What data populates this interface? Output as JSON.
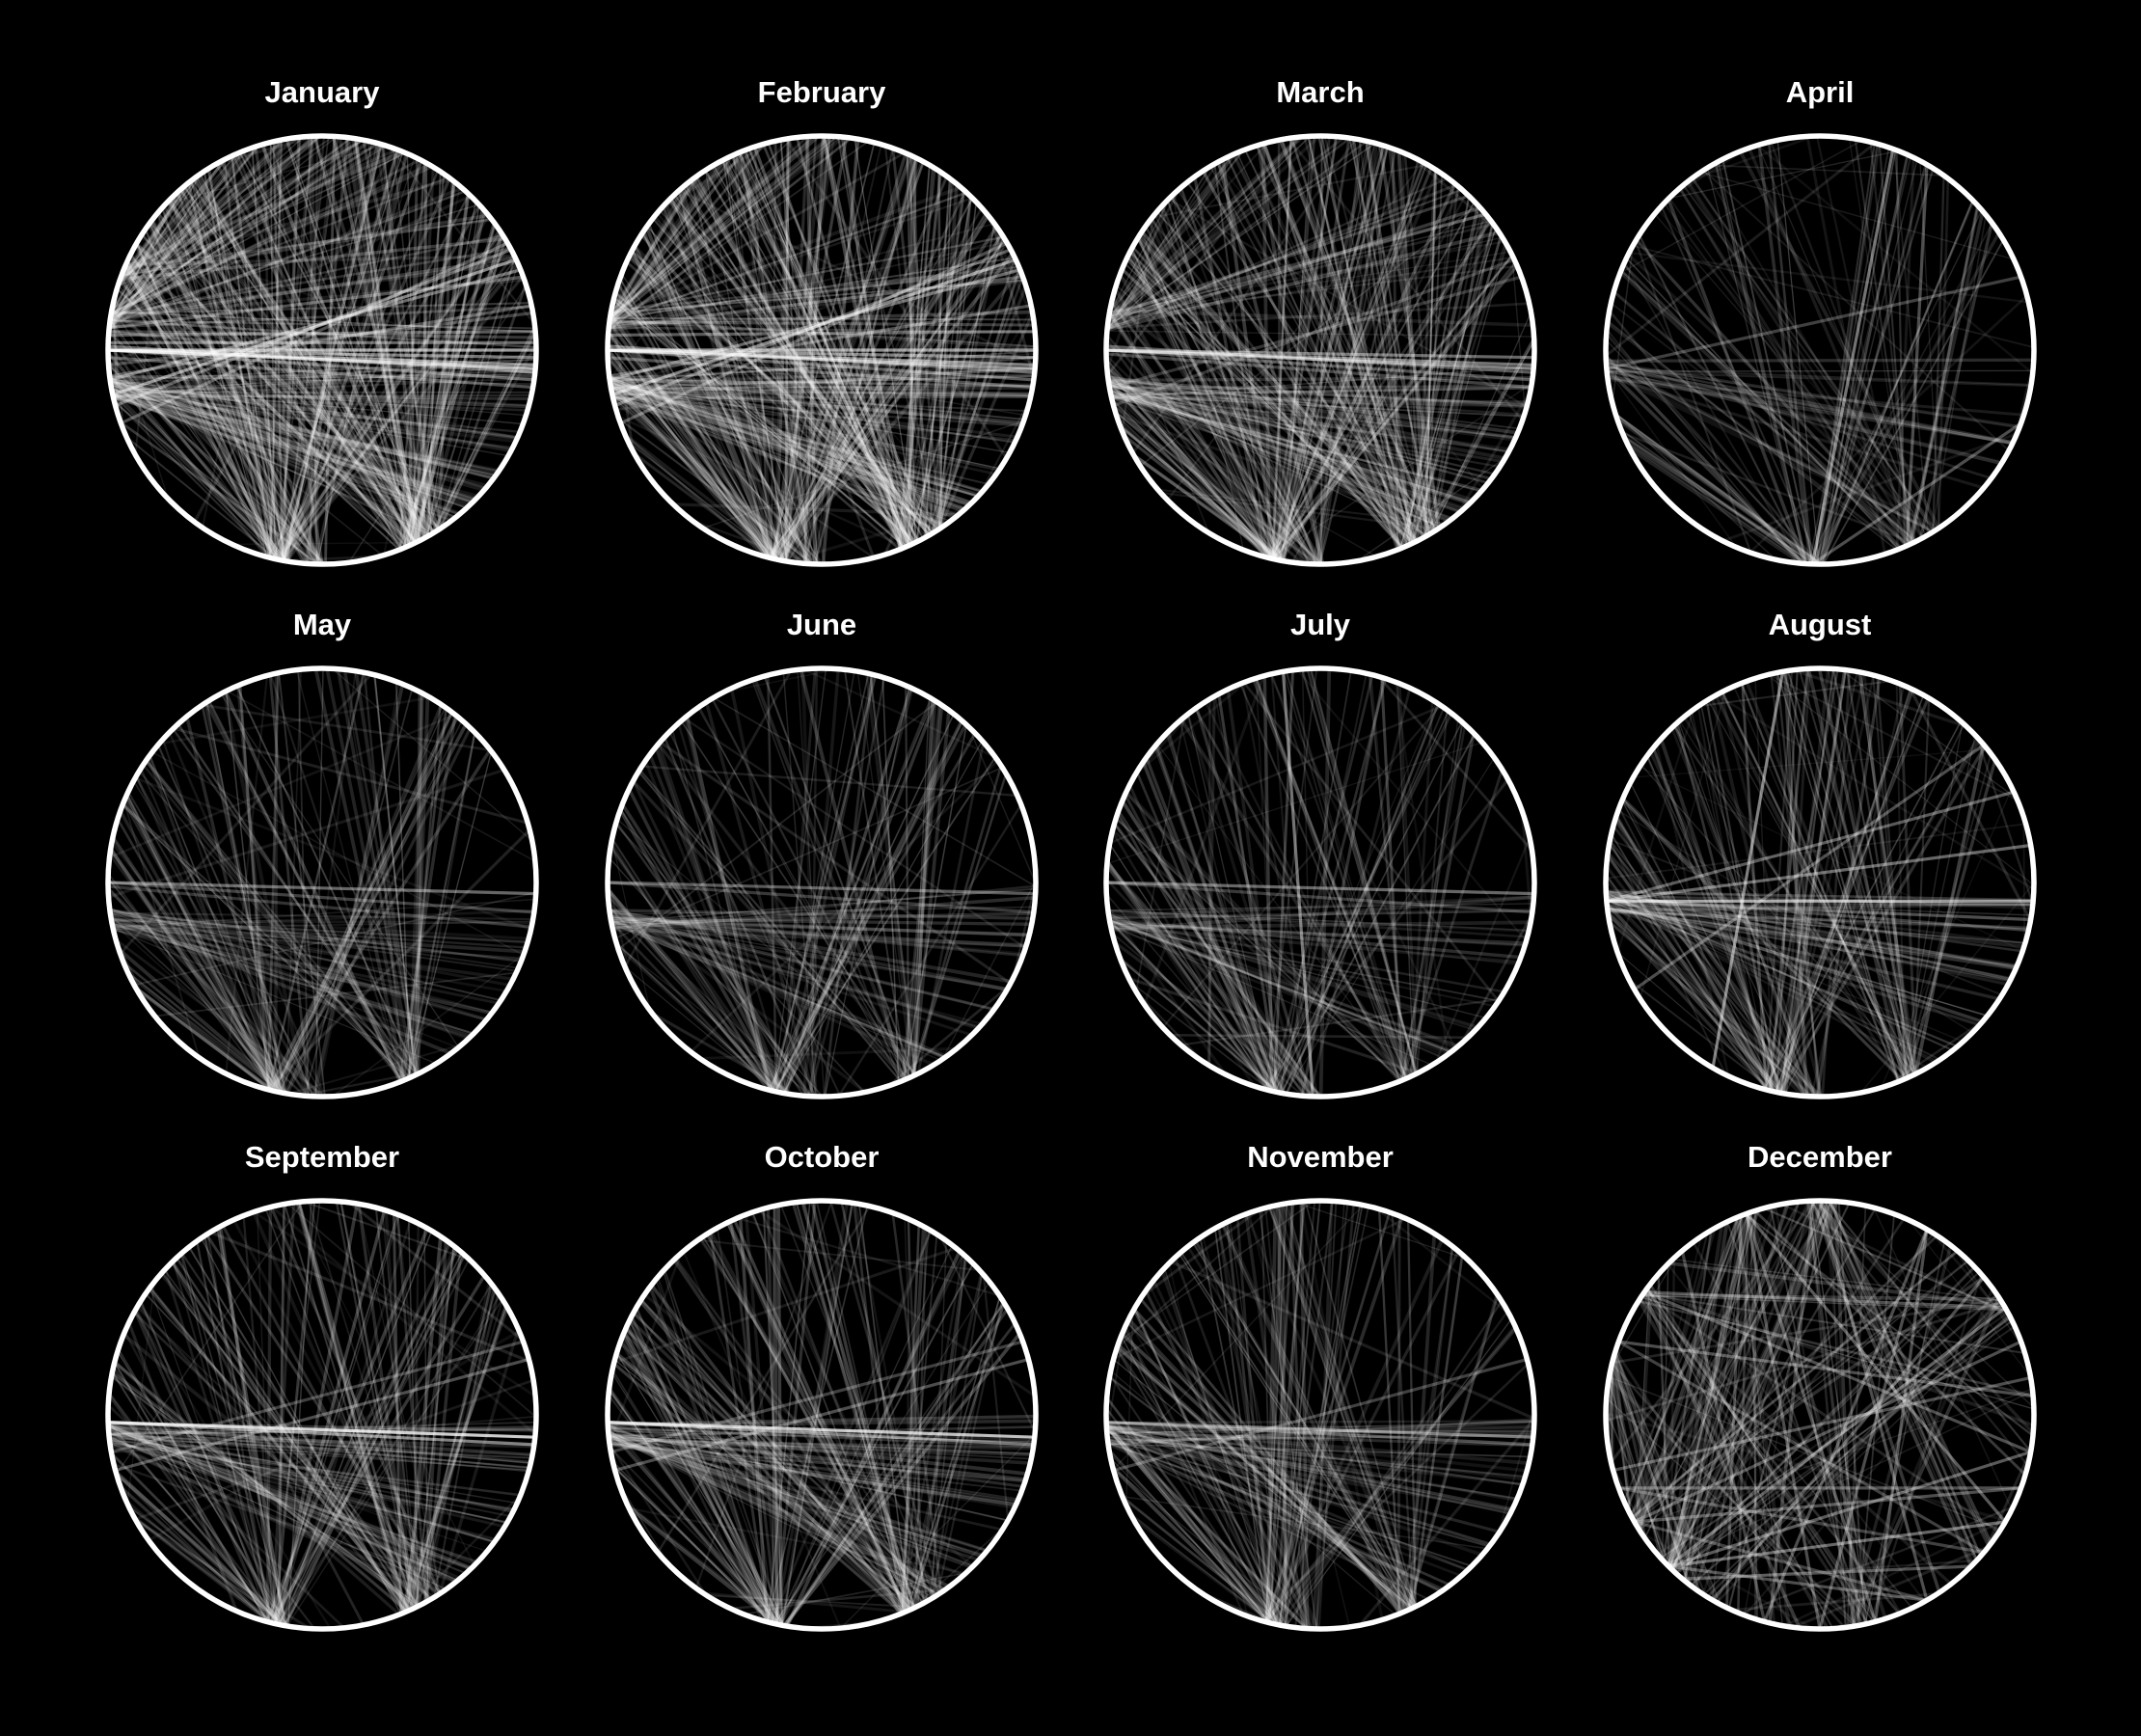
{
  "chart_data": {
    "type": "chord",
    "title": "",
    "background_color": "#000000",
    "line_color": "#ffffff",
    "ring_color": "#ffffff",
    "layout": "grid-3x4",
    "panels": [
      {
        "title": "January",
        "hubs": [
          102,
          66,
          59,
          92,
          5,
          188,
          200
        ],
        "chords": [
          [
            180,
            5,
            0.55
          ],
          [
            180,
            4,
            0.5
          ],
          [
            180,
            2,
            0.45
          ],
          [
            181,
            6,
            0.4
          ],
          [
            180,
            8,
            0.35
          ],
          [
            184,
            355,
            0.35
          ],
          [
            186,
            340,
            0.3
          ],
          [
            178,
            10,
            0.3
          ],
          [
            180,
            0,
            0.6
          ],
          [
            182,
            358,
            0.4
          ],
          [
            168,
            335,
            0.5
          ],
          [
            172,
            338,
            0.4
          ],
          [
            165,
            332,
            0.35
          ],
          [
            160,
            330,
            0.3
          ],
          [
            173,
            348,
            0.3
          ],
          [
            176,
            350,
            0.25
          ],
          [
            5,
            180,
            0.3
          ],
          [
            6,
            185,
            0.25
          ]
        ],
        "fans": [
          {
            "hub": 102,
            "count": 70,
            "from": 150,
            "to": 340,
            "alpha": 0.2
          },
          {
            "hub": 66,
            "count": 50,
            "from": 190,
            "to": 330,
            "alpha": 0.22
          },
          {
            "hub": 59,
            "count": 35,
            "from": 200,
            "to": 360,
            "alpha": 0.2
          },
          {
            "hub": 92,
            "count": 30,
            "from": 160,
            "to": 300,
            "alpha": 0.18
          },
          {
            "hub": 188,
            "count": 45,
            "from": 220,
            "to": 360,
            "alpha": 0.18
          },
          {
            "hub": 200,
            "count": 25,
            "from": 230,
            "to": 330,
            "alpha": 0.16
          },
          {
            "hub": 170,
            "count": 60,
            "from": 0,
            "to": 60,
            "alpha": 0.15
          }
        ]
      },
      {
        "title": "February",
        "hubs": [
          102,
          66,
          59,
          92,
          5,
          188
        ],
        "chords": [
          [
            180,
            5,
            0.55
          ],
          [
            180,
            4,
            0.5
          ],
          [
            180,
            2,
            0.45
          ],
          [
            181,
            6,
            0.4
          ],
          [
            180,
            8,
            0.35
          ],
          [
            184,
            355,
            0.35
          ],
          [
            186,
            340,
            0.3
          ],
          [
            178,
            10,
            0.3
          ],
          [
            180,
            0,
            0.55
          ],
          [
            168,
            335,
            0.5
          ],
          [
            172,
            338,
            0.4
          ],
          [
            165,
            332,
            0.35
          ],
          [
            160,
            330,
            0.3
          ],
          [
            173,
            348,
            0.3
          ]
        ],
        "fans": [
          {
            "hub": 102,
            "count": 70,
            "from": 150,
            "to": 340,
            "alpha": 0.2
          },
          {
            "hub": 66,
            "count": 50,
            "from": 190,
            "to": 330,
            "alpha": 0.22
          },
          {
            "hub": 59,
            "count": 35,
            "from": 200,
            "to": 360,
            "alpha": 0.2
          },
          {
            "hub": 92,
            "count": 30,
            "from": 160,
            "to": 300,
            "alpha": 0.18
          },
          {
            "hub": 188,
            "count": 40,
            "from": 220,
            "to": 360,
            "alpha": 0.18
          },
          {
            "hub": 170,
            "count": 55,
            "from": 0,
            "to": 60,
            "alpha": 0.15
          }
        ]
      },
      {
        "title": "March",
        "hubs": [
          102,
          66,
          59,
          92,
          188
        ],
        "chords": [
          [
            180,
            5,
            0.5
          ],
          [
            180,
            4,
            0.45
          ],
          [
            181,
            6,
            0.35
          ],
          [
            180,
            8,
            0.3
          ],
          [
            180,
            2,
            0.4
          ],
          [
            179,
            10,
            0.25
          ],
          [
            170,
            340,
            0.2
          ],
          [
            165,
            335,
            0.2
          ]
        ],
        "fans": [
          {
            "hub": 102,
            "count": 65,
            "from": 150,
            "to": 340,
            "alpha": 0.19
          },
          {
            "hub": 66,
            "count": 45,
            "from": 190,
            "to": 330,
            "alpha": 0.2
          },
          {
            "hub": 59,
            "count": 30,
            "from": 200,
            "to": 360,
            "alpha": 0.18
          },
          {
            "hub": 92,
            "count": 28,
            "from": 160,
            "to": 300,
            "alpha": 0.17
          },
          {
            "hub": 188,
            "count": 35,
            "from": 220,
            "to": 360,
            "alpha": 0.16
          },
          {
            "hub": 170,
            "count": 45,
            "from": 0,
            "to": 60,
            "alpha": 0.14
          }
        ]
      },
      {
        "title": "April",
        "hubs": [
          92,
          66,
          59
        ],
        "chords": [
          [
            92,
            290,
            0.45
          ],
          [
            66,
            300,
            0.3
          ],
          [
            92,
            20,
            0.3
          ],
          [
            175,
            340,
            0.25
          ]
        ],
        "fans": [
          {
            "hub": 92,
            "count": 40,
            "from": 150,
            "to": 330,
            "alpha": 0.17
          },
          {
            "hub": 66,
            "count": 25,
            "from": 180,
            "to": 320,
            "alpha": 0.16
          },
          {
            "hub": 59,
            "count": 15,
            "from": 200,
            "to": 340,
            "alpha": 0.14
          },
          {
            "hub": 175,
            "count": 20,
            "from": 0,
            "to": 60,
            "alpha": 0.13
          }
        ]
      },
      {
        "title": "May",
        "hubs": [
          102,
          66,
          92
        ],
        "chords": [
          [
            180,
            3,
            0.4
          ],
          [
            180,
            8,
            0.25
          ],
          [
            179,
            12,
            0.2
          ]
        ],
        "fans": [
          {
            "hub": 102,
            "count": 45,
            "from": 150,
            "to": 330,
            "alpha": 0.17
          },
          {
            "hub": 66,
            "count": 35,
            "from": 190,
            "to": 330,
            "alpha": 0.17
          },
          {
            "hub": 92,
            "count": 20,
            "from": 160,
            "to": 300,
            "alpha": 0.14
          },
          {
            "hub": 170,
            "count": 30,
            "from": 0,
            "to": 60,
            "alpha": 0.13
          }
        ]
      },
      {
        "title": "June",
        "hubs": [
          102,
          66,
          92
        ],
        "chords": [
          [
            180,
            3,
            0.35
          ],
          [
            180,
            8,
            0.22
          ]
        ],
        "fans": [
          {
            "hub": 102,
            "count": 40,
            "from": 150,
            "to": 330,
            "alpha": 0.17
          },
          {
            "hub": 66,
            "count": 30,
            "from": 190,
            "to": 330,
            "alpha": 0.17
          },
          {
            "hub": 92,
            "count": 18,
            "from": 160,
            "to": 300,
            "alpha": 0.14
          },
          {
            "hub": 170,
            "count": 30,
            "from": 0,
            "to": 60,
            "alpha": 0.13
          }
        ]
      },
      {
        "title": "July",
        "hubs": [
          102,
          66,
          92
        ],
        "chords": [
          [
            180,
            3,
            0.4
          ],
          [
            92,
            260,
            0.45
          ],
          [
            180,
            8,
            0.22
          ]
        ],
        "fans": [
          {
            "hub": 102,
            "count": 42,
            "from": 150,
            "to": 330,
            "alpha": 0.17
          },
          {
            "hub": 66,
            "count": 32,
            "from": 190,
            "to": 330,
            "alpha": 0.17
          },
          {
            "hub": 92,
            "count": 18,
            "from": 160,
            "to": 300,
            "alpha": 0.14
          },
          {
            "hub": 170,
            "count": 30,
            "from": 0,
            "to": 60,
            "alpha": 0.13
          }
        ]
      },
      {
        "title": "August",
        "hubs": [
          102,
          66,
          92,
          175
        ],
        "chords": [
          [
            175,
            5,
            0.6
          ],
          [
            175,
            350,
            0.4
          ],
          [
            120,
            260,
            0.5
          ],
          [
            175,
            335,
            0.35
          ],
          [
            150,
            320,
            0.3
          ],
          [
            175,
            10,
            0.3
          ]
        ],
        "fans": [
          {
            "hub": 102,
            "count": 45,
            "from": 150,
            "to": 330,
            "alpha": 0.18
          },
          {
            "hub": 66,
            "count": 35,
            "from": 190,
            "to": 330,
            "alpha": 0.18
          },
          {
            "hub": 92,
            "count": 25,
            "from": 160,
            "to": 300,
            "alpha": 0.15
          },
          {
            "hub": 175,
            "count": 35,
            "from": 0,
            "to": 60,
            "alpha": 0.16
          }
        ]
      },
      {
        "title": "September",
        "hubs": [
          102,
          66,
          59,
          175
        ],
        "chords": [
          [
            178,
            6,
            0.8
          ],
          [
            178,
            8,
            0.5
          ],
          [
            165,
            345,
            0.3
          ],
          [
            170,
            340,
            0.25
          ]
        ],
        "fans": [
          {
            "hub": 102,
            "count": 55,
            "from": 150,
            "to": 340,
            "alpha": 0.18
          },
          {
            "hub": 66,
            "count": 40,
            "from": 190,
            "to": 330,
            "alpha": 0.18
          },
          {
            "hub": 59,
            "count": 20,
            "from": 200,
            "to": 340,
            "alpha": 0.15
          },
          {
            "hub": 175,
            "count": 40,
            "from": 0,
            "to": 60,
            "alpha": 0.15
          }
        ]
      },
      {
        "title": "October",
        "hubs": [
          102,
          66,
          59,
          175
        ],
        "chords": [
          [
            178,
            6,
            0.75
          ],
          [
            178,
            8,
            0.45
          ],
          [
            165,
            345,
            0.3
          ],
          [
            170,
            340,
            0.25
          ]
        ],
        "fans": [
          {
            "hub": 102,
            "count": 55,
            "from": 150,
            "to": 340,
            "alpha": 0.18
          },
          {
            "hub": 66,
            "count": 40,
            "from": 190,
            "to": 330,
            "alpha": 0.18
          },
          {
            "hub": 59,
            "count": 20,
            "from": 200,
            "to": 340,
            "alpha": 0.15
          },
          {
            "hub": 175,
            "count": 40,
            "from": 0,
            "to": 60,
            "alpha": 0.15
          }
        ]
      },
      {
        "title": "November",
        "hubs": [
          102,
          66,
          92,
          175
        ],
        "chords": [
          [
            178,
            6,
            0.45
          ],
          [
            178,
            8,
            0.3
          ],
          [
            165,
            345,
            0.25
          ]
        ],
        "fans": [
          {
            "hub": 102,
            "count": 50,
            "from": 150,
            "to": 340,
            "alpha": 0.17
          },
          {
            "hub": 66,
            "count": 35,
            "from": 190,
            "to": 330,
            "alpha": 0.17
          },
          {
            "hub": 92,
            "count": 20,
            "from": 160,
            "to": 300,
            "alpha": 0.14
          },
          {
            "hub": 175,
            "count": 35,
            "from": 0,
            "to": 60,
            "alpha": 0.14
          }
        ]
      },
      {
        "title": "December",
        "hubs": [
          135,
          150,
          270,
          250,
          30,
          75,
          10,
          330,
          195
        ],
        "chords": [
          [
            135,
            30,
            0.4
          ],
          [
            135,
            10,
            0.35
          ],
          [
            150,
            340,
            0.3
          ],
          [
            135,
            330,
            0.35
          ],
          [
            150,
            20,
            0.3
          ],
          [
            90,
            300,
            0.3
          ],
          [
            75,
            250,
            0.3
          ],
          [
            75,
            300,
            0.3
          ],
          [
            60,
            270,
            0.3
          ],
          [
            150,
            60,
            0.25
          ],
          [
            135,
            60,
            0.3
          ],
          [
            30,
            250,
            0.35
          ],
          [
            10,
            215,
            0.3
          ],
          [
            330,
            215,
            0.3
          ],
          [
            355,
            200,
            0.3
          ],
          [
            40,
            200,
            0.25
          ],
          [
            90,
            250,
            0.3
          ],
          [
            120,
            320,
            0.3
          ],
          [
            165,
            350,
            0.3
          ],
          [
            160,
            20,
            0.3
          ],
          [
            160,
            40,
            0.25
          ],
          [
            105,
            300,
            0.3
          ],
          [
            105,
            230,
            0.25
          ],
          [
            45,
            130,
            0.3
          ]
        ],
        "fans": [
          {
            "hub": 135,
            "count": 30,
            "from": 180,
            "to": 360,
            "alpha": 0.16
          },
          {
            "hub": 150,
            "count": 20,
            "from": 200,
            "to": 360,
            "alpha": 0.15
          },
          {
            "hub": 270,
            "count": 25,
            "from": 0,
            "to": 180,
            "alpha": 0.18
          },
          {
            "hub": 250,
            "count": 20,
            "from": 0,
            "to": 180,
            "alpha": 0.17
          },
          {
            "hub": 215,
            "count": 15,
            "from": 340,
            "to": 100,
            "alpha": 0.16
          },
          {
            "hub": 330,
            "count": 15,
            "from": 100,
            "to": 260,
            "alpha": 0.16
          },
          {
            "hub": 195,
            "count": 20,
            "from": 80,
            "to": 200,
            "alpha": 0.18
          },
          {
            "hub": 80,
            "count": 15,
            "from": 180,
            "to": 330,
            "alpha": 0.16
          }
        ]
      }
    ]
  }
}
